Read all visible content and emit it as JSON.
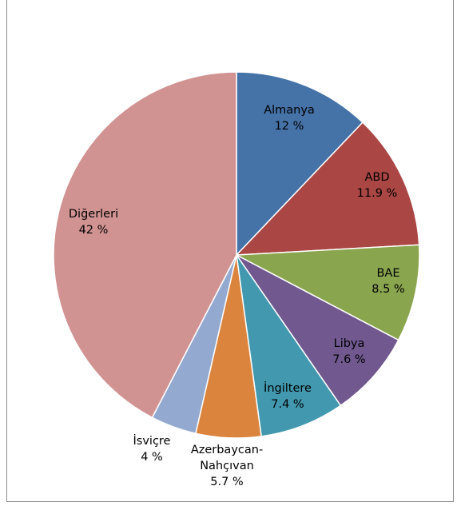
{
  "chart_data": {
    "type": "pie",
    "title": "",
    "start_angle_deg": 0,
    "direction": "clockwise",
    "legend": "none",
    "slices": [
      {
        "label": "Almanya",
        "value": 12,
        "value_text": "12 %",
        "color": "#4572A7",
        "label_color": "#000000"
      },
      {
        "label": "ABD",
        "value": 11.9,
        "value_text": "11.9 %",
        "color": "#AA4643",
        "label_color": "#000000"
      },
      {
        "label": "BAE",
        "value": 8.5,
        "value_text": "8.5 %",
        "color": "#89A54E",
        "label_color": "#000000"
      },
      {
        "label": "Libya",
        "value": 7.6,
        "value_text": "7.6 %",
        "color": "#71588F",
        "label_color": "#000000"
      },
      {
        "label": "İngiltere",
        "value": 7.4,
        "value_text": "7.4 %",
        "color": "#4198AF",
        "label_color": "#000000"
      },
      {
        "label": "Azerbaycan-Nahçıvan",
        "label_lines": [
          "Azerbaycan-",
          "Nahçıvan"
        ],
        "value": 5.7,
        "value_text": "5.7 %",
        "color": "#DB843D",
        "label_color": "#000000"
      },
      {
        "label": "İsviçre",
        "value": 4,
        "value_text": "4 %",
        "color": "#93A9CF",
        "label_color": "#000000"
      },
      {
        "label": "Diğerleri",
        "value": 42,
        "value_text": "42 %",
        "color": "#D19392",
        "label_color": "#000000"
      }
    ]
  }
}
